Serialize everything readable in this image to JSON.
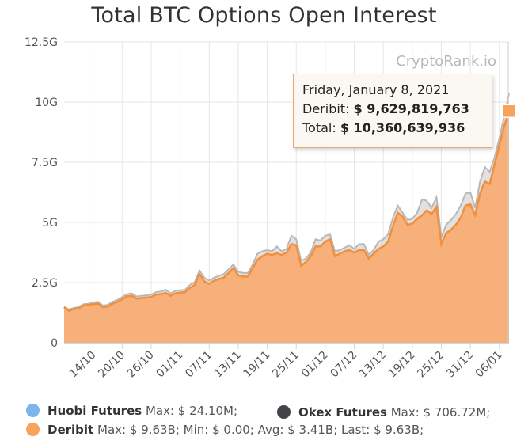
{
  "chart_data": {
    "type": "area",
    "title": "Total BTC Options Open Interest",
    "watermark": "CryptoRank.io",
    "xlabel": "",
    "ylabel": "",
    "ylim": [
      0,
      12500000000
    ],
    "y_tick_labels": [
      "0",
      "2.5G",
      "5G",
      "7.5G",
      "10G",
      "12.5G"
    ],
    "y_tick_values": [
      0,
      2500000000,
      5000000000,
      7500000000,
      10000000000,
      12500000000
    ],
    "x_tick_labels": [
      "14/10",
      "20/10",
      "26/10",
      "01/11",
      "07/11",
      "13/11",
      "19/11",
      "25/11",
      "01/12",
      "07/12",
      "13/12",
      "19/12",
      "25/12",
      "31/12",
      "06/01"
    ],
    "x_tick_day_index": [
      6,
      12,
      18,
      24,
      30,
      36,
      42,
      48,
      54,
      60,
      66,
      72,
      78,
      84,
      90
    ],
    "x_start_date": "08/10",
    "x_end_date": "08/01",
    "grid": true,
    "legend_position": "bottom",
    "series": [
      {
        "name": "Deribit",
        "color": "#f7a35c",
        "stats": "Max: $ 9.63B; Min: $ 0.00; Avg: $ 3.41B; Last: $ 9.63B;",
        "values_billion": [
          1.47,
          1.33,
          1.4,
          1.43,
          1.55,
          1.57,
          1.6,
          1.63,
          1.48,
          1.5,
          1.62,
          1.7,
          1.8,
          1.93,
          1.95,
          1.83,
          1.86,
          1.88,
          1.9,
          2.0,
          2.02,
          2.07,
          1.95,
          2.05,
          2.08,
          2.1,
          2.28,
          2.4,
          2.85,
          2.55,
          2.45,
          2.58,
          2.65,
          2.7,
          2.9,
          3.1,
          2.8,
          2.75,
          2.75,
          3.1,
          3.45,
          3.6,
          3.7,
          3.65,
          3.72,
          3.65,
          3.75,
          4.1,
          4.05,
          3.2,
          3.35,
          3.6,
          4.0,
          4.0,
          4.2,
          4.3,
          3.6,
          3.7,
          3.8,
          3.85,
          3.75,
          3.85,
          3.85,
          3.5,
          3.7,
          3.9,
          4.0,
          4.2,
          4.85,
          5.4,
          5.25,
          4.9,
          4.95,
          5.15,
          5.3,
          5.5,
          5.35,
          5.65,
          4.1,
          4.55,
          4.7,
          4.9,
          5.2,
          5.7,
          5.75,
          5.3,
          6.2,
          6.7,
          6.6,
          7.4,
          8.2,
          9.0,
          9.63
        ]
      },
      {
        "name": "Total",
        "color": "#c8c8c8",
        "values_billion": [
          1.5,
          1.38,
          1.45,
          1.48,
          1.6,
          1.62,
          1.67,
          1.7,
          1.55,
          1.57,
          1.7,
          1.78,
          1.9,
          2.02,
          2.05,
          1.92,
          1.95,
          1.97,
          2.0,
          2.1,
          2.13,
          2.2,
          2.05,
          2.15,
          2.18,
          2.2,
          2.4,
          2.52,
          3.0,
          2.7,
          2.58,
          2.7,
          2.78,
          2.85,
          3.05,
          3.25,
          2.95,
          2.9,
          2.9,
          3.25,
          3.7,
          3.8,
          3.85,
          3.8,
          4.0,
          3.8,
          3.9,
          4.45,
          4.3,
          3.4,
          3.5,
          3.75,
          4.3,
          4.25,
          4.45,
          4.5,
          3.8,
          3.85,
          3.95,
          4.05,
          3.9,
          4.1,
          4.1,
          3.65,
          3.85,
          4.2,
          4.3,
          4.5,
          5.2,
          5.7,
          5.4,
          5.1,
          5.15,
          5.4,
          5.95,
          5.9,
          5.6,
          6.05,
          4.4,
          4.9,
          5.1,
          5.35,
          5.7,
          6.2,
          6.25,
          5.6,
          6.7,
          7.3,
          7.1,
          7.7,
          8.5,
          9.4,
          10.36
        ]
      },
      {
        "name": "Huobi Futures",
        "color": "#7cb5ec",
        "stats": "Max: $ 24.10M;"
      },
      {
        "name": "Okex Futures",
        "color": "#434348",
        "stats": "Max: $ 706.72M;"
      }
    ],
    "tooltip": {
      "date": "Friday, January 8, 2021",
      "deribit_label": "Deribit:",
      "deribit_value": "$ 9,629,819,763",
      "total_label": "Total:",
      "total_value": "$ 10,360,639,936"
    }
  },
  "colors": {
    "deribit": "#f7a35c",
    "total": "#c8c8c8",
    "grid": "#e6e6e6",
    "axis": "#ccd6eb"
  }
}
